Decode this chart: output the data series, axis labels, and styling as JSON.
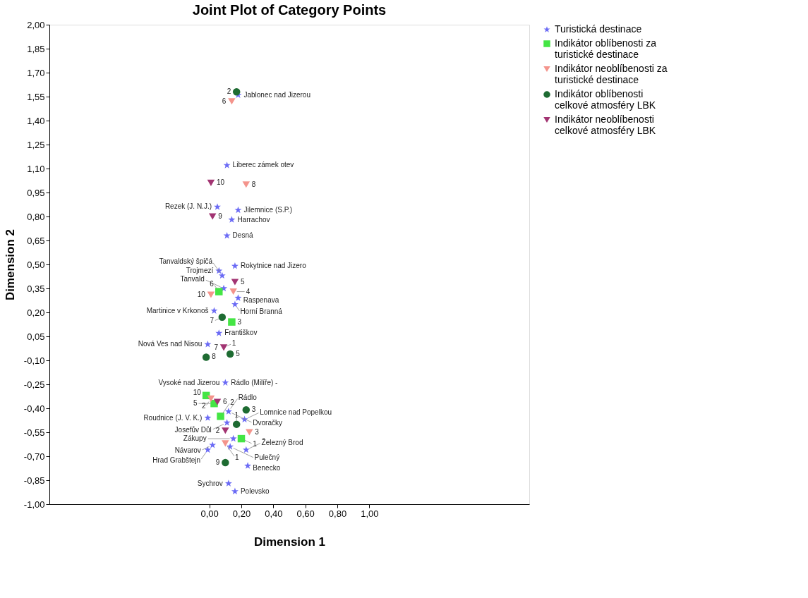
{
  "chart_data": {
    "type": "scatter",
    "title": "Joint Plot of Category Points",
    "xlabel": "Dimension 1",
    "ylabel": "Dimension 2",
    "xlim": [
      -1.0,
      2.0
    ],
    "ylim": [
      -1.0,
      2.0
    ],
    "xticks": [
      {
        "value": 0,
        "label": "0,00"
      },
      {
        "value": 0.2,
        "label": "0,20"
      },
      {
        "value": 0.4,
        "label": "0,40"
      },
      {
        "value": 0.6,
        "label": "0,60"
      },
      {
        "value": 0.8,
        "label": "0,80"
      },
      {
        "value": 1.0,
        "label": "1,00"
      }
    ],
    "yticks": [
      {
        "value": -1.0,
        "label": "-1,00"
      },
      {
        "value": -0.85,
        "label": "-0,85"
      },
      {
        "value": -0.7,
        "label": "-0,70"
      },
      {
        "value": -0.55,
        "label": "-0,55"
      },
      {
        "value": -0.4,
        "label": "-0,40"
      },
      {
        "value": -0.25,
        "label": "-0,25"
      },
      {
        "value": -0.1,
        "label": "-0,10"
      },
      {
        "value": 0.05,
        "label": "0,05"
      },
      {
        "value": 0.2,
        "label": "0,20"
      },
      {
        "value": 0.35,
        "label": "0,35"
      },
      {
        "value": 0.5,
        "label": "0,50"
      },
      {
        "value": 0.65,
        "label": "0,65"
      },
      {
        "value": 0.8,
        "label": "0,80"
      },
      {
        "value": 0.95,
        "label": "0,95"
      },
      {
        "value": 1.1,
        "label": "1,10"
      },
      {
        "value": 1.25,
        "label": "1,25"
      },
      {
        "value": 1.4,
        "label": "1,40"
      },
      {
        "value": 1.55,
        "label": "1,55"
      },
      {
        "value": 1.7,
        "label": "1,70"
      },
      {
        "value": 1.85,
        "label": "1,85"
      },
      {
        "value": 2.0,
        "label": "2,00"
      }
    ],
    "grid": false,
    "legend": "right",
    "series": [
      {
        "name": "Turistická destinace",
        "color": "#6b6bf5",
        "marker": "star",
        "x": [
          0.18,
          0.11,
          0.05,
          0.18,
          0.14,
          0.11,
          0.16,
          0.06,
          0.08,
          0.09,
          0.18,
          0.16,
          0.03,
          0.06,
          -0.01,
          0.1,
          0.12,
          -0.01,
          0.11,
          0.22,
          0.15,
          0.13,
          0.23,
          0.02,
          -0.01,
          0.24,
          0.12,
          0.16
        ],
        "values": [
          1.56,
          1.12,
          0.86,
          0.84,
          0.78,
          0.68,
          0.49,
          0.46,
          0.43,
          0.35,
          0.29,
          0.25,
          0.21,
          0.07,
          0.0,
          -0.24,
          -0.42,
          -0.46,
          -0.49,
          -0.47,
          -0.59,
          -0.64,
          -0.66,
          -0.63,
          -0.66,
          -0.76,
          -0.87,
          -0.92
        ]
      },
      {
        "name": "Indikátor oblíbenosti za turistické destinace",
        "color": "#44e544",
        "marker": "square",
        "x": [
          0.06,
          0.14,
          -0.02,
          0.03,
          0.07,
          0.2
        ],
        "values": [
          0.33,
          0.14,
          -0.32,
          -0.37,
          -0.45,
          -0.59
        ]
      },
      {
        "name": "Indikátor neoblíbenosti za turistické destinace",
        "color": "#f4948c",
        "marker": "triangle",
        "x": [
          0.14,
          0.23,
          0.15,
          0.01,
          0.01,
          0.25,
          0.1
        ],
        "values": [
          1.52,
          1.0,
          0.33,
          0.31,
          -0.34,
          -0.55,
          -0.62
        ]
      },
      {
        "name": "Indikátor oblíbenosti celkové atmosféry LBK",
        "color": "#1e6b32",
        "marker": "circle",
        "x": [
          0.17,
          0.08,
          -0.02,
          0.13,
          0.23,
          0.17,
          0.1
        ],
        "values": [
          1.58,
          0.17,
          -0.08,
          -0.06,
          -0.41,
          -0.5,
          -0.74
        ]
      },
      {
        "name": "Indikátor neoblíbenosti celkové atmosféry LBK",
        "color": "#a23472",
        "marker": "triangle",
        "x": [
          0.01,
          0.02,
          0.16,
          0.09,
          0.05,
          0.1
        ],
        "values": [
          1.01,
          0.8,
          0.39,
          -0.02,
          -0.36,
          -0.54
        ]
      }
    ],
    "annotations": [
      {
        "text": "Jablonec nad Jizerou",
        "x": 0.18,
        "y": 1.56
      },
      {
        "text": "Liberec zámek otev",
        "x": 0.11,
        "y": 1.12
      },
      {
        "text": "Rezek (J. N.J.)",
        "x": 0.05,
        "y": 0.86
      },
      {
        "text": "Jilemnice (S.P.)",
        "x": 0.18,
        "y": 0.84
      },
      {
        "text": "Harrachov",
        "x": 0.14,
        "y": 0.78
      },
      {
        "text": "Desná",
        "x": 0.11,
        "y": 0.68
      },
      {
        "text": "Rokytnice nad Jizero",
        "x": 0.16,
        "y": 0.49
      },
      {
        "text": "Trojmezí",
        "x": 0.06,
        "y": 0.46
      },
      {
        "text": "Tanvaldský špičá",
        "x": 0.08,
        "y": 0.43
      },
      {
        "text": "Tanvald",
        "x": 0.09,
        "y": 0.35
      },
      {
        "text": "Raspenava",
        "x": 0.18,
        "y": 0.29
      },
      {
        "text": "Horní Branná",
        "x": 0.16,
        "y": 0.25
      },
      {
        "text": "Martinice v Krkonoš",
        "x": 0.03,
        "y": 0.21
      },
      {
        "text": "Františkov",
        "x": 0.06,
        "y": 0.07
      },
      {
        "text": "Nová Ves nad Nisou",
        "x": -0.01,
        "y": 0.0
      },
      {
        "text": "Vysoké nad Jizerou",
        "x": 0.1,
        "y": -0.24
      },
      {
        "text": "Rádlo (Milíře) -",
        "x": 0.1,
        "y": -0.24
      },
      {
        "text": "Dvoračky",
        "x": 0.12,
        "y": -0.42
      },
      {
        "text": "Rádlo",
        "x": 0.12,
        "y": -0.42
      },
      {
        "text": "Roudnice (J. V. K.)",
        "x": -0.01,
        "y": -0.46
      },
      {
        "text": "Josefův Důl",
        "x": 0.11,
        "y": -0.49
      },
      {
        "text": "Lomnice nad Popelkou",
        "x": 0.22,
        "y": -0.47
      },
      {
        "text": "Zákupy",
        "x": 0.15,
        "y": -0.59
      },
      {
        "text": "Pulečný",
        "x": 0.13,
        "y": -0.64
      },
      {
        "text": "Železný Brod",
        "x": 0.23,
        "y": -0.66
      },
      {
        "text": "Návarov",
        "x": 0.02,
        "y": -0.63
      },
      {
        "text": "Hrad Grabštejn",
        "x": -0.01,
        "y": -0.66
      },
      {
        "text": "Benecko",
        "x": 0.24,
        "y": -0.76
      },
      {
        "text": "Sychrov",
        "x": 0.12,
        "y": -0.87
      },
      {
        "text": "Polevsko",
        "x": 0.16,
        "y": -0.92
      },
      {
        "text": "2",
        "x": 0.17,
        "y": 1.58
      },
      {
        "text": "6",
        "x": 0.14,
        "y": 1.52
      },
      {
        "text": "10",
        "x": 0.01,
        "y": 1.01
      },
      {
        "text": "8",
        "x": 0.23,
        "y": 1.0
      },
      {
        "text": "9",
        "x": 0.02,
        "y": 0.8
      },
      {
        "text": "5",
        "x": 0.16,
        "y": 0.39
      },
      {
        "text": "4",
        "x": 0.15,
        "y": 0.33
      },
      {
        "text": "6",
        "x": 0.06,
        "y": 0.33
      },
      {
        "text": "10",
        "x": 0.01,
        "y": 0.31
      },
      {
        "text": "7",
        "x": 0.08,
        "y": 0.17
      },
      {
        "text": "3",
        "x": 0.14,
        "y": 0.14
      },
      {
        "text": "7",
        "x": 0.09,
        "y": -0.02
      },
      {
        "text": "1",
        "x": 0.09,
        "y": -0.02
      },
      {
        "text": "5",
        "x": 0.13,
        "y": -0.06
      },
      {
        "text": "8",
        "x": -0.02,
        "y": -0.08
      },
      {
        "text": "10",
        "x": -0.02,
        "y": -0.32
      },
      {
        "text": "2",
        "x": 0.01,
        "y": -0.34
      },
      {
        "text": "6",
        "x": 0.05,
        "y": -0.36
      },
      {
        "text": "5",
        "x": 0.03,
        "y": -0.37
      },
      {
        "text": "1",
        "x": 0.17,
        "y": -0.5
      },
      {
        "text": "3",
        "x": 0.23,
        "y": -0.41
      },
      {
        "text": "2",
        "x": 0.1,
        "y": -0.54
      },
      {
        "text": "2",
        "x": 0.07,
        "y": -0.45
      },
      {
        "text": "1",
        "x": 0.2,
        "y": -0.59
      },
      {
        "text": "3",
        "x": 0.25,
        "y": -0.55
      },
      {
        "text": "1",
        "x": 0.1,
        "y": -0.62
      },
      {
        "text": "9",
        "x": 0.1,
        "y": -0.74
      }
    ]
  }
}
